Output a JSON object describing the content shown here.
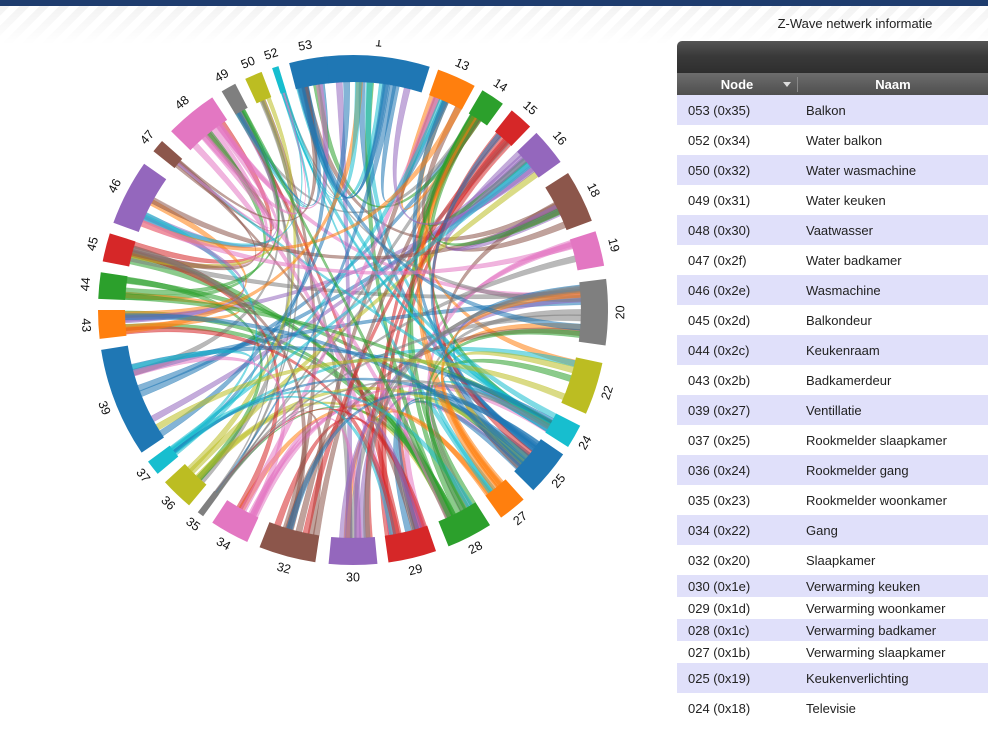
{
  "page": {
    "title": "Z-Wave netwerk informatie"
  },
  "table": {
    "headers": {
      "node": "Node",
      "name": "Naam"
    },
    "rows": [
      {
        "node": "053 (0x35)",
        "name": "Balkon"
      },
      {
        "node": "052 (0x34)",
        "name": "Water balkon"
      },
      {
        "node": "050 (0x32)",
        "name": "Water wasmachine"
      },
      {
        "node": "049 (0x31)",
        "name": "Water keuken"
      },
      {
        "node": "048 (0x30)",
        "name": "Vaatwasser"
      },
      {
        "node": "047 (0x2f)",
        "name": "Water badkamer"
      },
      {
        "node": "046 (0x2e)",
        "name": "Wasmachine"
      },
      {
        "node": "045 (0x2d)",
        "name": "Balkondeur"
      },
      {
        "node": "044 (0x2c)",
        "name": "Keukenraam"
      },
      {
        "node": "043 (0x2b)",
        "name": "Badkamerdeur"
      },
      {
        "node": "039 (0x27)",
        "name": "Ventillatie"
      },
      {
        "node": "037 (0x25)",
        "name": "Rookmelder slaapkamer"
      },
      {
        "node": "036 (0x24)",
        "name": "Rookmelder gang"
      },
      {
        "node": "035 (0x23)",
        "name": "Rookmelder woonkamer"
      },
      {
        "node": "034 (0x22)",
        "name": "Gang"
      },
      {
        "node": "032 (0x20)",
        "name": "Slaapkamer"
      },
      {
        "node": "030 (0x1e)",
        "name": "Verwarming keuken"
      },
      {
        "node": "029 (0x1d)",
        "name": "Verwarming woonkamer"
      },
      {
        "node": "028 (0x1c)",
        "name": "Verwarming badkamer"
      },
      {
        "node": "027 (0x1b)",
        "name": "Verwarming slaapkamer"
      },
      {
        "node": "025 (0x19)",
        "name": "Keukenverlichting"
      },
      {
        "node": "024 (0x18)",
        "name": "Televisie"
      }
    ]
  },
  "chord": {
    "groups": [
      {
        "label": "1",
        "start": -6.5,
        "end": 17.5,
        "color": "#1f77b4"
      },
      {
        "label": "13",
        "start": 19.5,
        "end": 28.5,
        "color": "#ff7f0e"
      },
      {
        "label": "14",
        "start": 30.5,
        "end": 36.0,
        "color": "#2ca02c"
      },
      {
        "label": "15",
        "start": 38.5,
        "end": 44.0,
        "color": "#d62728"
      },
      {
        "label": "16",
        "start": 46.0,
        "end": 54.5,
        "color": "#9467bd"
      },
      {
        "label": "18",
        "start": 57.5,
        "end": 69.5,
        "color": "#8c564b"
      },
      {
        "label": "19",
        "start": 72.0,
        "end": 80.0,
        "color": "#e377c2"
      },
      {
        "label": "20",
        "start": 83.0,
        "end": 98.0,
        "color": "#7f7f7f"
      },
      {
        "label": "22",
        "start": 102.0,
        "end": 114.0,
        "color": "#bcbd22"
      },
      {
        "label": "24",
        "start": 117.0,
        "end": 122.5,
        "color": "#17becf"
      },
      {
        "label": "25",
        "start": 124.5,
        "end": 135.0,
        "color": "#1f77b4"
      },
      {
        "label": "27",
        "start": 138.0,
        "end": 144.5,
        "color": "#ff7f0e"
      },
      {
        "label": "28",
        "start": 147.5,
        "end": 158.0,
        "color": "#2ca02c"
      },
      {
        "label": "29",
        "start": 161.0,
        "end": 172.0,
        "color": "#d62728"
      },
      {
        "label": "30",
        "start": 174.5,
        "end": 185.5,
        "color": "#9467bd"
      },
      {
        "label": "32",
        "start": 188.5,
        "end": 201.5,
        "color": "#8c564b"
      },
      {
        "label": "34",
        "start": 204.5,
        "end": 213.5,
        "color": "#e377c2"
      },
      {
        "label": "35",
        "start": 216.0,
        "end": 217.5,
        "color": "#7f7f7f"
      },
      {
        "label": "36",
        "start": 220.0,
        "end": 227.5,
        "color": "#bcbd22"
      },
      {
        "label": "37",
        "start": 230.0,
        "end": 233.5,
        "color": "#17becf"
      },
      {
        "label": "39",
        "start": 236.0,
        "end": 261.0,
        "color": "#1f77b4"
      },
      {
        "label": "43",
        "start": 263.5,
        "end": 270.0,
        "color": "#ff7f0e"
      },
      {
        "label": "44",
        "start": 272.5,
        "end": 278.5,
        "color": "#2ca02c"
      },
      {
        "label": "45",
        "start": 281.0,
        "end": 287.5,
        "color": "#d62728"
      },
      {
        "label": "46",
        "start": 290.0,
        "end": 305.0,
        "color": "#9467bd"
      },
      {
        "label": "47",
        "start": 308.5,
        "end": 311.5,
        "color": "#8c564b"
      },
      {
        "label": "48",
        "start": 314.5,
        "end": 326.5,
        "color": "#e377c2"
      },
      {
        "label": "49",
        "start": 329.0,
        "end": 332.5,
        "color": "#7f7f7f"
      },
      {
        "label": "50",
        "start": 335.0,
        "end": 339.0,
        "color": "#bcbd22"
      },
      {
        "label": "52",
        "start": 341.5,
        "end": 343.0,
        "color": "#17becf"
      },
      {
        "label": "53",
        "start": 345.5,
        "end": 354.0,
        "color": "#1f77b4"
      }
    ]
  }
}
